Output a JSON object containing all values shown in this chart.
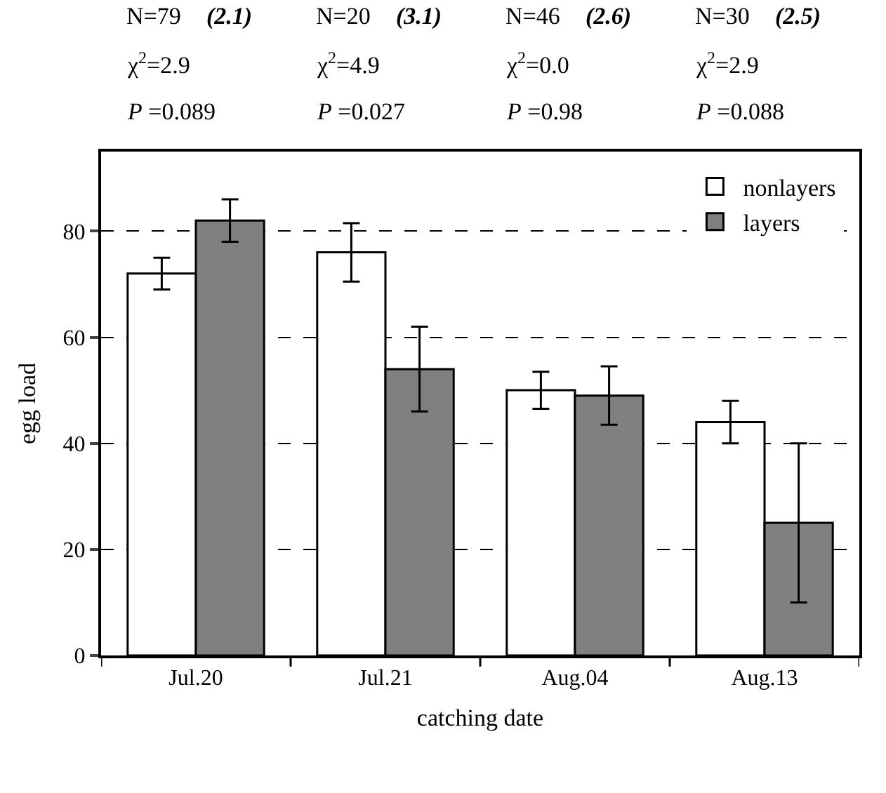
{
  "chart_data": {
    "type": "bar",
    "xlabel": "catching date",
    "ylabel": "egg load",
    "categories": [
      "Jul.20",
      "Jul.21",
      "Aug.04",
      "Aug.13"
    ],
    "series": [
      {
        "name": "nonlayers",
        "color": "#ffffff",
        "values": [
          72,
          76,
          50,
          44
        ],
        "errors": [
          3,
          5.5,
          3.5,
          4
        ]
      },
      {
        "name": "layers",
        "color": "#808080",
        "values": [
          82,
          54,
          49,
          25
        ],
        "errors": [
          4,
          8,
          5.5,
          15
        ]
      }
    ],
    "ylim": [
      0,
      95
    ],
    "yticks": [
      0,
      20,
      40,
      60,
      80
    ],
    "grid": "y",
    "legend": "top right",
    "annotations": [
      "N=79",
      "(2.1)",
      "χ$^{2}$=2.9",
      "P =0.089",
      "N=20",
      "(3.1)",
      "χ$^{2}$=4.9",
      "P =0.027",
      "N=46",
      "(2.6)",
      "χ$^{2}$=0.0",
      "P =0.98",
      "N=30",
      "(2.5)",
      "χ$^{2}$=2.9",
      "P =0.088"
    ]
  }
}
